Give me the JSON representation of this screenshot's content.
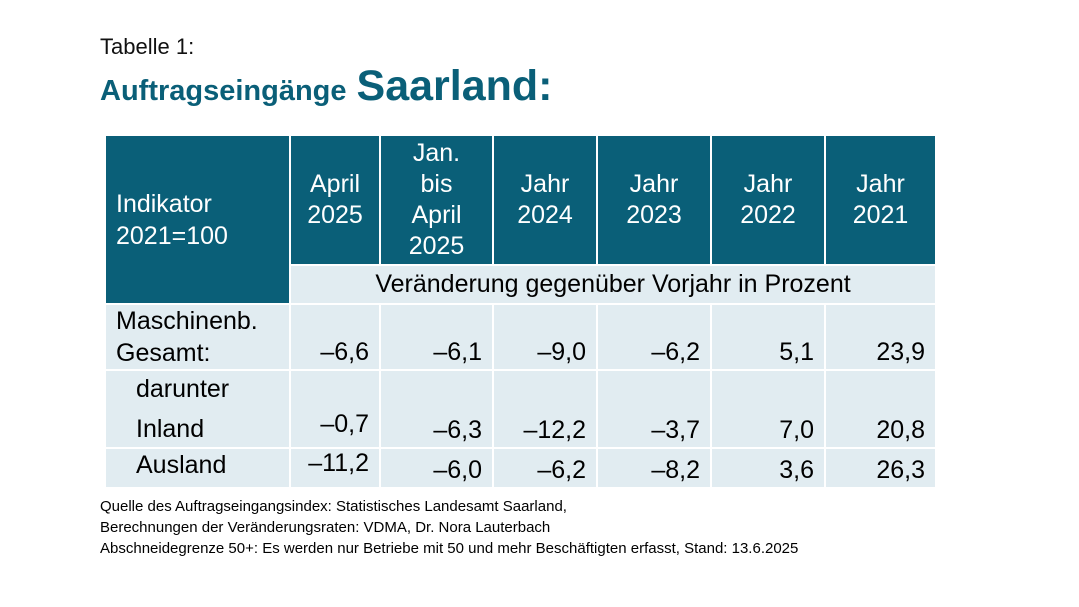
{
  "caption": "Tabelle 1:",
  "title": {
    "small": "Auftragseingänge",
    "big": "Saarland:"
  },
  "table": {
    "indicator": [
      "Indikator",
      "2021=100"
    ],
    "columns": [
      [
        "April",
        "2025"
      ],
      [
        "Jan.",
        "bis",
        "April",
        "2025"
      ],
      [
        "Jahr",
        "2024"
      ],
      [
        "Jahr",
        "2023"
      ],
      [
        "Jahr",
        "2022"
      ],
      [
        "Jahr",
        "2021"
      ]
    ],
    "subheader": "Veränderung gegenüber Vorjahr in Prozent",
    "rows": [
      {
        "label": [
          "Maschinenb.",
          "Gesamt:"
        ],
        "values": [
          "–6,6",
          "–6,1",
          "–9,0",
          "–6,2",
          "5,1",
          "23,9"
        ]
      },
      {
        "label": [
          "darunter",
          "Inland"
        ],
        "values": [
          "–0,7",
          "–6,3",
          "–12,2",
          "–3,7",
          "7,0",
          "20,8"
        ]
      },
      {
        "label": [
          "Ausland"
        ],
        "values": [
          "–11,2",
          "–6,0",
          "–6,2",
          "–8,2",
          "3,6",
          "26,3"
        ]
      }
    ]
  },
  "footer": [
    "Quelle des Auftragseingangsindex: Statistisches Landesamt Saarland,",
    "Berechnungen der Veränderungsraten: VDMA, Dr. Nora Lauterbach",
    "Abschneidegrenze 50+: Es werden nur Betriebe mit 50 und mehr Beschäftigten erfasst, Stand: 13.6.2025"
  ],
  "colors": {
    "accent": "#0a5f78",
    "cell": "#e1ecf1"
  }
}
